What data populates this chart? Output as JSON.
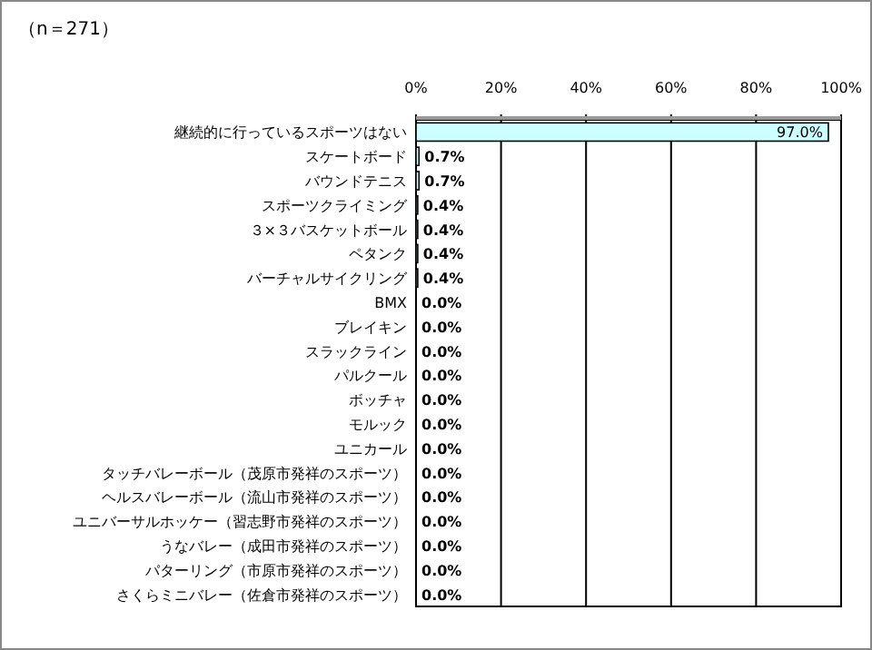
{
  "chart_data": {
    "type": "bar",
    "orientation": "horizontal",
    "title": "（n＝271）",
    "categories": [
      "継続的に行っているスポーツはない",
      "スケートボード",
      "バウンドテニス",
      "スポーツクライミング",
      "３×３バスケットボール",
      "ペタンク",
      "バーチャルサイクリング",
      "BMX",
      "ブレイキン",
      "スラックライン",
      "パルクール",
      "ボッチャ",
      "モルック",
      "ユニカール",
      "タッチバレーボール（茂原市発祥のスポーツ）",
      "ヘルスバレーボール（流山市発祥のスポーツ）",
      "ユニバーサルホッケー（習志野市発祥のスポーツ）",
      "うなバレー（成田市発祥のスポーツ）",
      "パターリング（市原市発祥のスポーツ）",
      "さくらミニバレー（佐倉市発祥のスポーツ）"
    ],
    "values": [
      97.0,
      0.7,
      0.7,
      0.4,
      0.4,
      0.4,
      0.4,
      0.0,
      0.0,
      0.0,
      0.0,
      0.0,
      0.0,
      0.0,
      0.0,
      0.0,
      0.0,
      0.0,
      0.0,
      0.0
    ],
    "value_labels": [
      "97.0%",
      "0.7%",
      "0.7%",
      "0.4%",
      "0.4%",
      "0.4%",
      "0.4%",
      "0.0%",
      "0.0%",
      "0.0%",
      "0.0%",
      "0.0%",
      "0.0%",
      "0.0%",
      "0.0%",
      "0.0%",
      "0.0%",
      "0.0%",
      "0.0%",
      "0.0%"
    ],
    "color": "#ccffff",
    "xlim": [
      0,
      100
    ],
    "xticks": [
      {
        "value": 0,
        "label": "0%"
      },
      {
        "value": 20,
        "label": "20%"
      },
      {
        "value": 40,
        "label": "40%"
      },
      {
        "value": 60,
        "label": "60%"
      },
      {
        "value": 80,
        "label": "80%"
      },
      {
        "value": 100,
        "label": "100%"
      }
    ],
    "grid": "x"
  }
}
